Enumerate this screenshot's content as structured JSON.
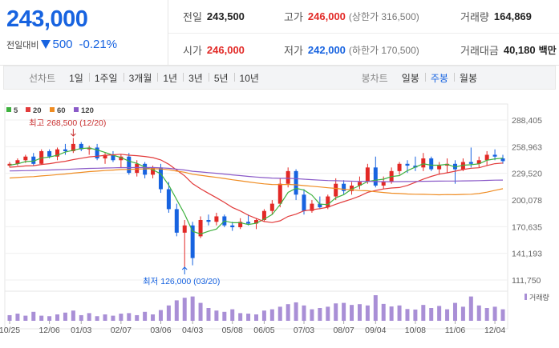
{
  "quote": {
    "price": "243,000",
    "change_label": "전일대비",
    "change_amount": "500",
    "change_percent": "-0.21%",
    "row1": [
      {
        "key": "전일",
        "value": "243,500",
        "color": "neutral",
        "sub": ""
      },
      {
        "key": "고가",
        "value": "246,000",
        "color": "up",
        "sub": "(상한가 316,500)"
      },
      {
        "key": "거래량",
        "value": "164,869",
        "color": "neutral",
        "sub": ""
      }
    ],
    "row2": [
      {
        "key": "시가",
        "value": "246,000",
        "color": "up",
        "sub": ""
      },
      {
        "key": "저가",
        "value": "242,000",
        "color": "down",
        "sub": "(하한가 170,500)"
      },
      {
        "key": "거래대금",
        "value": "40,180",
        "color": "neutral",
        "sub": "백만"
      }
    ]
  },
  "toolbar": {
    "line_label": "선차트",
    "line_periods": [
      "1일",
      "1주일",
      "3개월",
      "1년",
      "3년",
      "5년",
      "10년"
    ],
    "candle_label": "봉차트",
    "candle_periods": [
      "일봉",
      "주봉",
      "월봉"
    ],
    "active_candle": "주봉"
  },
  "colors": {
    "up": "#e22926",
    "down": "#1763e0",
    "ma5": "#3eb13e",
    "ma20": "#e23b3b",
    "ma60": "#ef8c22",
    "ma120": "#8a5ac8",
    "volume": "#a98fd6"
  },
  "chart_data": {
    "type": "candlestick",
    "legend": [
      {
        "name": "5",
        "color": "#3eb13e"
      },
      {
        "name": "20",
        "color": "#e23b3b"
      },
      {
        "name": "60",
        "color": "#ef8c22"
      },
      {
        "name": "120",
        "color": "#8a5ac8"
      }
    ],
    "y_ticks": [
      "288,405",
      "258,963",
      "229,520",
      "200,078",
      "170,635",
      "141,193",
      "111,750"
    ],
    "ylim": [
      111750,
      288405
    ],
    "x_ticks": [
      "10/25",
      "12/06",
      "01/03",
      "02/07",
      "03/06",
      "04/03",
      "05/08",
      "06/05",
      "07/03",
      "08/07",
      "09/04",
      "10/08",
      "11/06",
      "12/04"
    ],
    "annotations": {
      "high": "최고 268,500 (12/20)",
      "low": "최저 126,000 (03/20)"
    },
    "volume_label": "거래량",
    "candles": [
      [
        238000,
        242000,
        236000,
        240000
      ],
      [
        240000,
        246000,
        238000,
        244000
      ],
      [
        244000,
        250000,
        241000,
        248000
      ],
      [
        248000,
        252000,
        238000,
        240000
      ],
      [
        240000,
        256000,
        239000,
        254000
      ],
      [
        254000,
        256000,
        246000,
        248000
      ],
      [
        248000,
        258000,
        244000,
        256000
      ],
      [
        256000,
        262000,
        250000,
        254000
      ],
      [
        254000,
        268500,
        252000,
        262000
      ],
      [
        262000,
        264000,
        254000,
        256000
      ],
      [
        256000,
        260000,
        250000,
        258000
      ],
      [
        258000,
        262000,
        244000,
        246000
      ],
      [
        246000,
        252000,
        240000,
        250000
      ],
      [
        250000,
        254000,
        242000,
        244000
      ],
      [
        244000,
        250000,
        236000,
        248000
      ],
      [
        248000,
        252000,
        228000,
        230000
      ],
      [
        230000,
        244000,
        226000,
        240000
      ],
      [
        240000,
        242000,
        224000,
        228000
      ],
      [
        228000,
        238000,
        224000,
        236000
      ],
      [
        236000,
        240000,
        208000,
        212000
      ],
      [
        212000,
        220000,
        186000,
        190000
      ],
      [
        190000,
        196000,
        160000,
        164000
      ],
      [
        164000,
        178000,
        126000,
        172000
      ],
      [
        172000,
        176000,
        128000,
        136000
      ],
      [
        160000,
        182000,
        158000,
        178000
      ],
      [
        178000,
        184000,
        172000,
        176000
      ],
      [
        176000,
        186000,
        172000,
        182000
      ],
      [
        182000,
        184000,
        170000,
        172000
      ],
      [
        172000,
        176000,
        166000,
        170000
      ],
      [
        170000,
        180000,
        168000,
        176000
      ],
      [
        176000,
        184000,
        172000,
        174000
      ],
      [
        174000,
        180000,
        168000,
        178000
      ],
      [
        178000,
        190000,
        176000,
        188000
      ],
      [
        188000,
        200000,
        184000,
        196000
      ],
      [
        196000,
        224000,
        192000,
        218000
      ],
      [
        218000,
        236000,
        214000,
        232000
      ],
      [
        232000,
        234000,
        200000,
        206000
      ],
      [
        206000,
        212000,
        184000,
        188000
      ],
      [
        188000,
        200000,
        186000,
        196000
      ],
      [
        196000,
        204000,
        190000,
        192000
      ],
      [
        192000,
        206000,
        190000,
        204000
      ],
      [
        204000,
        224000,
        200000,
        218000
      ],
      [
        218000,
        222000,
        206000,
        210000
      ],
      [
        210000,
        220000,
        206000,
        216000
      ],
      [
        216000,
        226000,
        212000,
        220000
      ],
      [
        220000,
        240000,
        218000,
        236000
      ],
      [
        236000,
        248000,
        214000,
        216000
      ],
      [
        216000,
        226000,
        212000,
        220000
      ],
      [
        220000,
        236000,
        218000,
        232000
      ],
      [
        232000,
        242000,
        228000,
        240000
      ],
      [
        240000,
        244000,
        230000,
        238000
      ],
      [
        238000,
        248000,
        232000,
        236000
      ],
      [
        236000,
        252000,
        232000,
        246000
      ],
      [
        246000,
        248000,
        232000,
        234000
      ],
      [
        234000,
        242000,
        228000,
        238000
      ],
      [
        238000,
        246000,
        230000,
        240000
      ],
      [
        240000,
        244000,
        218000,
        234000
      ],
      [
        234000,
        246000,
        232000,
        242000
      ],
      [
        242000,
        258000,
        236000,
        240000
      ],
      [
        240000,
        248000,
        236000,
        244000
      ],
      [
        244000,
        254000,
        238000,
        250000
      ],
      [
        250000,
        256000,
        244000,
        248000
      ],
      [
        246000,
        250000,
        240000,
        243000
      ]
    ],
    "volumes": [
      0.22,
      0.28,
      0.2,
      0.35,
      0.2,
      0.18,
      0.25,
      0.32,
      0.4,
      0.22,
      0.3,
      0.18,
      0.25,
      0.2,
      0.28,
      0.3,
      0.22,
      0.35,
      0.25,
      0.42,
      0.6,
      0.8,
      0.9,
      0.95,
      0.7,
      0.5,
      0.4,
      0.35,
      0.45,
      0.3,
      0.28,
      0.25,
      0.4,
      0.45,
      0.55,
      0.65,
      0.72,
      0.6,
      0.45,
      0.5,
      0.55,
      0.68,
      0.7,
      0.62,
      0.65,
      0.6,
      1.0,
      0.66,
      0.56,
      0.6,
      0.46,
      0.44,
      0.62,
      0.5,
      0.58,
      0.45,
      0.7,
      0.55,
      0.95,
      0.6,
      0.5,
      0.55,
      0.45
    ]
  }
}
